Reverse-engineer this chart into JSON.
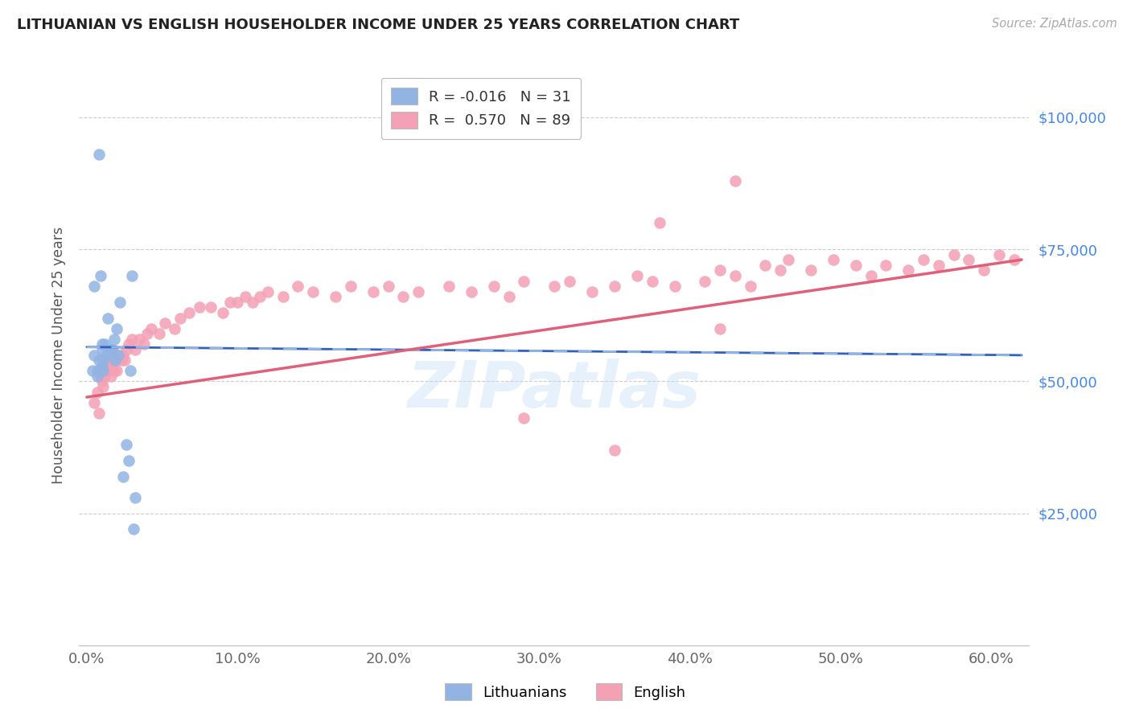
{
  "title": "LITHUANIAN VS ENGLISH HOUSEHOLDER INCOME UNDER 25 YEARS CORRELATION CHART",
  "source": "Source: ZipAtlas.com",
  "ylabel": "Householder Income Under 25 years",
  "xlabel_ticks": [
    "0.0%",
    "10.0%",
    "20.0%",
    "30.0%",
    "40.0%",
    "50.0%",
    "60.0%"
  ],
  "xlabel_vals": [
    0.0,
    0.1,
    0.2,
    0.3,
    0.4,
    0.5,
    0.6
  ],
  "ytick_labels": [
    "$25,000",
    "$50,000",
    "$75,000",
    "$100,000"
  ],
  "ytick_vals": [
    25000,
    50000,
    75000,
    100000
  ],
  "ymin": 0,
  "ymax": 110000,
  "xmin": -0.005,
  "xmax": 0.625,
  "blue_color": "#92b4e3",
  "pink_color": "#f4a0b5",
  "blue_line_color": "#3060c0",
  "pink_line_color": "#e0607a",
  "blue_dashed_color": "#92b4e3",
  "watermark": "ZIPatlas",
  "blue_scatter_x": [
    0.008,
    0.021,
    0.004,
    0.005,
    0.005,
    0.007,
    0.007,
    0.008,
    0.009,
    0.01,
    0.01,
    0.01,
    0.011,
    0.011,
    0.012,
    0.013,
    0.014,
    0.015,
    0.016,
    0.017,
    0.018,
    0.019,
    0.02,
    0.022,
    0.024,
    0.026,
    0.028,
    0.029,
    0.03,
    0.031,
    0.032
  ],
  "blue_scatter_y": [
    93000,
    55000,
    52000,
    68000,
    55000,
    52000,
    51000,
    54000,
    70000,
    57000,
    53000,
    56000,
    52000,
    54000,
    57000,
    55000,
    62000,
    56000,
    56000,
    56000,
    58000,
    54000,
    60000,
    65000,
    32000,
    38000,
    35000,
    52000,
    70000,
    22000,
    28000
  ],
  "pink_scatter_x": [
    0.005,
    0.007,
    0.008,
    0.009,
    0.01,
    0.01,
    0.011,
    0.012,
    0.013,
    0.014,
    0.015,
    0.016,
    0.017,
    0.018,
    0.018,
    0.019,
    0.02,
    0.022,
    0.023,
    0.024,
    0.025,
    0.026,
    0.028,
    0.03,
    0.032,
    0.035,
    0.038,
    0.04,
    0.043,
    0.048,
    0.052,
    0.058,
    0.062,
    0.068,
    0.075,
    0.082,
    0.09,
    0.095,
    0.1,
    0.105,
    0.11,
    0.115,
    0.12,
    0.13,
    0.14,
    0.15,
    0.165,
    0.175,
    0.19,
    0.2,
    0.21,
    0.22,
    0.24,
    0.255,
    0.27,
    0.28,
    0.29,
    0.31,
    0.32,
    0.335,
    0.35,
    0.365,
    0.375,
    0.39,
    0.41,
    0.42,
    0.43,
    0.44,
    0.45,
    0.46,
    0.465,
    0.48,
    0.495,
    0.51,
    0.52,
    0.53,
    0.545,
    0.555,
    0.565,
    0.575,
    0.585,
    0.595,
    0.605,
    0.615,
    0.35,
    0.29,
    0.42,
    0.38,
    0.43
  ],
  "pink_scatter_y": [
    46000,
    48000,
    44000,
    51000,
    50000,
    52000,
    49000,
    51000,
    53000,
    52000,
    54000,
    51000,
    53000,
    52000,
    55000,
    54000,
    52000,
    55000,
    54000,
    55000,
    54000,
    56000,
    57000,
    58000,
    56000,
    58000,
    57000,
    59000,
    60000,
    59000,
    61000,
    60000,
    62000,
    63000,
    64000,
    64000,
    63000,
    65000,
    65000,
    66000,
    65000,
    66000,
    67000,
    66000,
    68000,
    67000,
    66000,
    68000,
    67000,
    68000,
    66000,
    67000,
    68000,
    67000,
    68000,
    66000,
    69000,
    68000,
    69000,
    67000,
    68000,
    70000,
    69000,
    68000,
    69000,
    71000,
    70000,
    68000,
    72000,
    71000,
    73000,
    71000,
    73000,
    72000,
    70000,
    72000,
    71000,
    73000,
    72000,
    74000,
    73000,
    71000,
    74000,
    73000,
    37000,
    43000,
    60000,
    80000,
    88000
  ]
}
